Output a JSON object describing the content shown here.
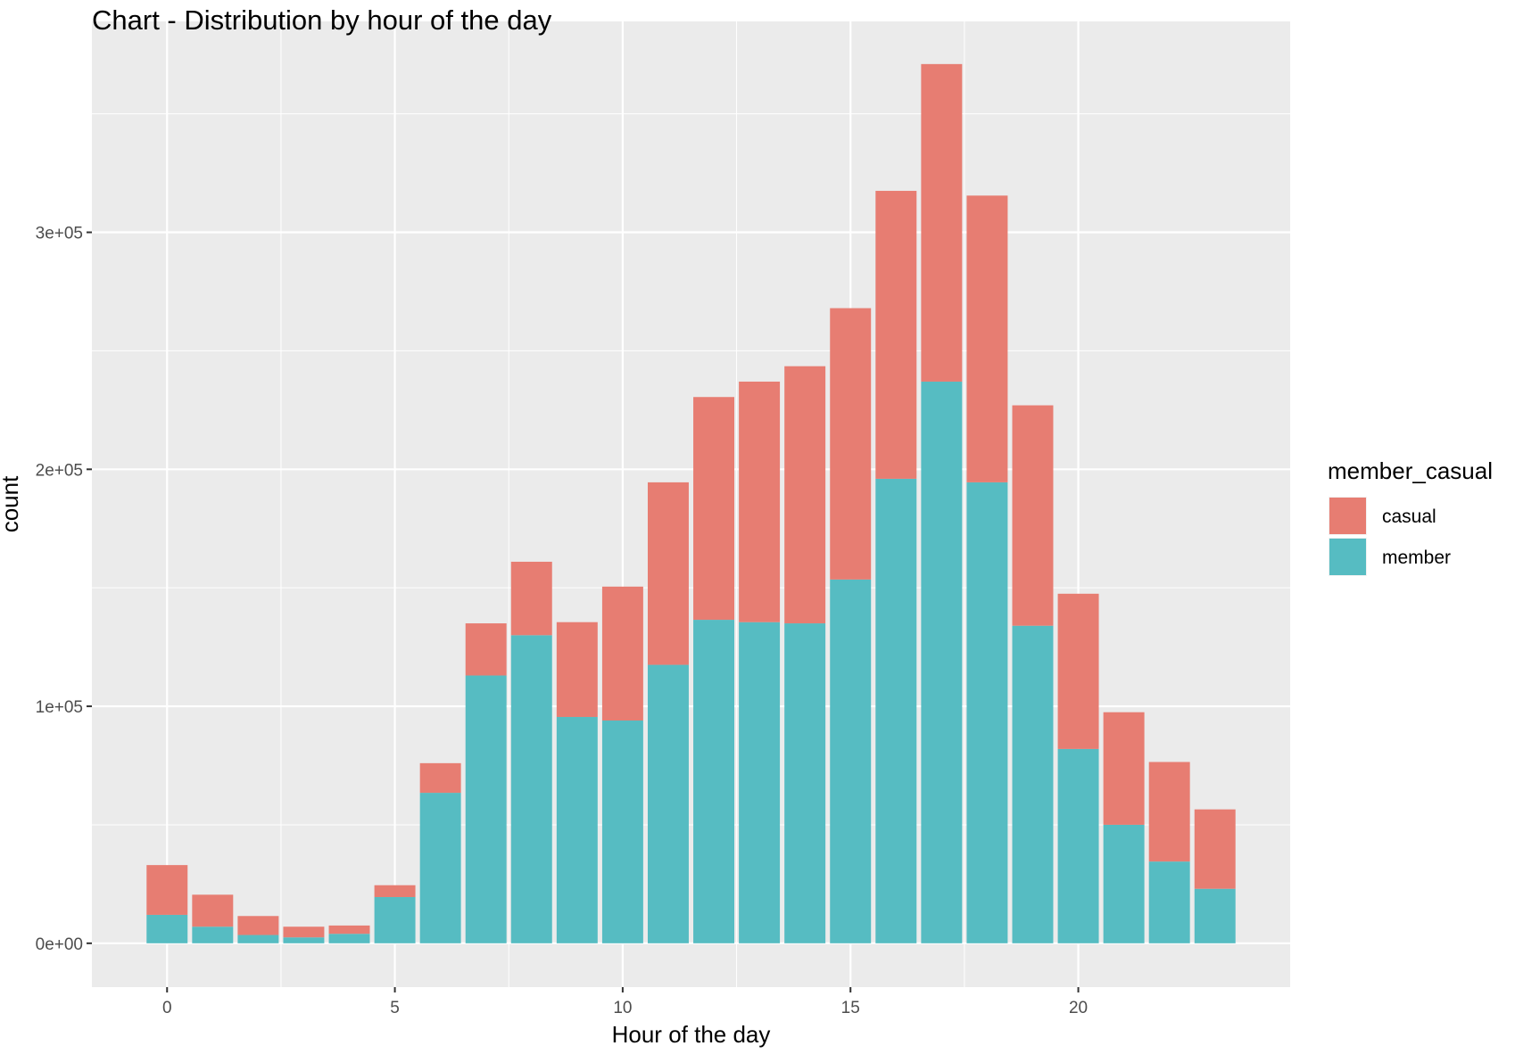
{
  "chart_data": {
    "type": "bar",
    "stacked": true,
    "title": "Chart  - Distribution by hour of the day",
    "xlabel": "Hour of the day",
    "ylabel": "count",
    "x": [
      0,
      1,
      2,
      3,
      4,
      5,
      6,
      7,
      8,
      9,
      10,
      11,
      12,
      13,
      14,
      15,
      16,
      17,
      18,
      19,
      20,
      21,
      22,
      23
    ],
    "series": [
      {
        "name": "member",
        "color": "#56BCC2",
        "values": [
          12000,
          7000,
          3500,
          2500,
          4000,
          19500,
          63500,
          113000,
          130000,
          95500,
          94000,
          117500,
          136500,
          135500,
          135000,
          153500,
          196000,
          237000,
          194500,
          134000,
          82000,
          50000,
          34500,
          23000
        ]
      },
      {
        "name": "casual",
        "color": "#E77D72",
        "values": [
          21000,
          13500,
          8000,
          4500,
          3500,
          5000,
          12500,
          22000,
          31000,
          40000,
          56500,
          77000,
          94000,
          101500,
          108500,
          114500,
          121500,
          134000,
          121000,
          93000,
          65500,
          47500,
          42000,
          33500
        ]
      }
    ],
    "xlim": [
      -1.65,
      24.65
    ],
    "ylim": [
      -18500,
      389000
    ],
    "xticks": [
      0,
      5,
      10,
      15,
      20
    ],
    "xtick_labels": [
      "0",
      "5",
      "10",
      "15",
      "20"
    ],
    "yticks": [
      0,
      100000,
      200000,
      300000
    ],
    "ytick_labels": [
      "0e+00",
      "1e+05",
      "2e+05",
      "3e+05"
    ],
    "grid": true,
    "legend": {
      "title": "member_casual",
      "position": "right",
      "entries": [
        {
          "label": "casual",
          "color": "#E77D72"
        },
        {
          "label": "member",
          "color": "#56BCC2"
        }
      ]
    },
    "colors": {
      "panel_background": "#EBEBEB",
      "grid_major": "#FFFFFF",
      "tick_label": "#4D4D4D",
      "text": "#000000"
    }
  }
}
